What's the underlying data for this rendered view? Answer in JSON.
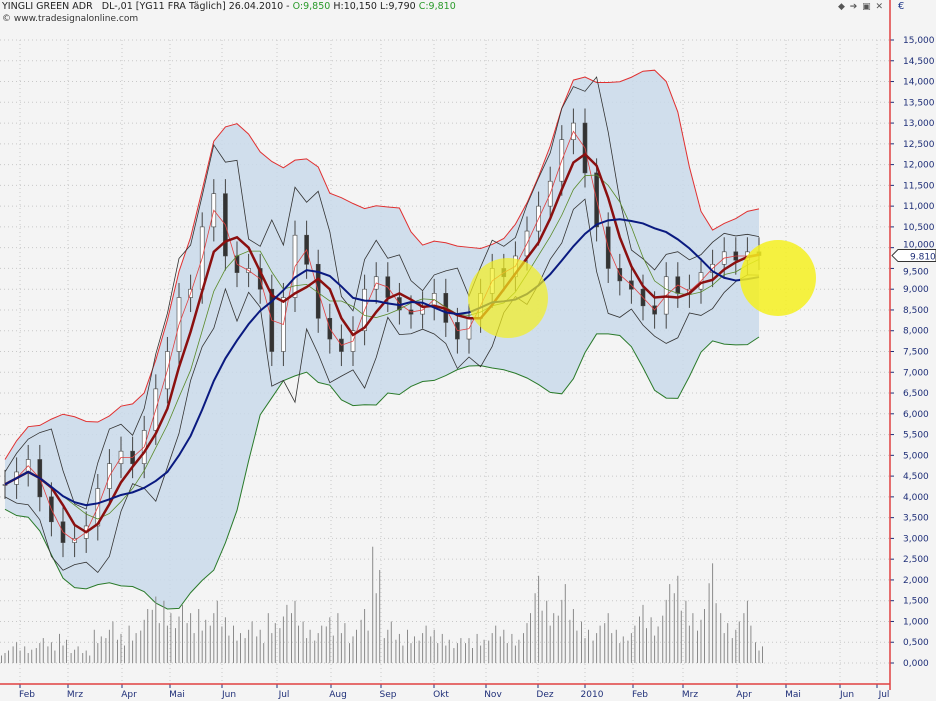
{
  "header": {
    "symbol": "YINGLI GREEN ADR",
    "info": "DL-,01 [YG11 FRA  Täglich] 26.04.2010 -",
    "open": "O:9,850",
    "high": "H:10,150",
    "low": "L:9,790",
    "close": "C:9,810",
    "source": "© www.tradesignalonline.com",
    "currency": "€",
    "controls": "◆ ➔ ▣ ✕"
  },
  "chart_data": {
    "type": "candlestick-with-indicators",
    "title": "YINGLI GREEN ADR",
    "ylim": [
      0,
      15
    ],
    "y_ticks": [
      "0,000",
      "0,500",
      "1,000",
      "1,500",
      "2,000",
      "2,500",
      "3,000",
      "3,500",
      "4,000",
      "4,500",
      "5,000",
      "5,500",
      "6,000",
      "6,500",
      "7,000",
      "7,500",
      "8,000",
      "8,500",
      "9,000",
      "9,500",
      "10,000",
      "10,500",
      "11,000",
      "11,500",
      "12,000",
      "12,500",
      "13,000",
      "13,500",
      "14,000",
      "14,500",
      "15,000"
    ],
    "x_ticks": [
      "Feb",
      "Mrz",
      "Apr",
      "Mai",
      "Jun",
      "Jul",
      "Aug",
      "Sep",
      "Okt",
      "Nov",
      "Dez",
      "2010",
      "Feb",
      "Mrz",
      "Apr",
      "Mai",
      "Jun",
      "Jul"
    ],
    "last_price": "9.810",
    "grid": true,
    "weekly_close": [
      4.3,
      4.6,
      4.9,
      4.0,
      3.4,
      2.9,
      3.0,
      3.3,
      4.2,
      4.8,
      5.1,
      4.8,
      5.6,
      6.6,
      7.5,
      8.8,
      9.0,
      10.5,
      11.3,
      9.8,
      9.4,
      9.5,
      9.0,
      7.5,
      8.8,
      10.3,
      9.6,
      8.3,
      7.8,
      7.5,
      8.0,
      9.0,
      9.3,
      8.8,
      8.5,
      8.4,
      8.6,
      8.9,
      8.2,
      7.8,
      8.3,
      8.9,
      9.5,
      9.3,
      9.8,
      10.4,
      11.0,
      11.6,
      12.6,
      13.0,
      11.8,
      10.5,
      9.5,
      9.2,
      9.0,
      8.6,
      8.4,
      9.3,
      8.9,
      9.0,
      9.4,
      9.6,
      9.9,
      9.7,
      9.9,
      9.81
    ],
    "volume": [
      0.3,
      0.5,
      0.4,
      0.6,
      0.5,
      0.7,
      0.4,
      0.3,
      0.8,
      1.0,
      0.7,
      0.9,
      1.3,
      1.6,
      1.5,
      1.4,
      1.2,
      1.3,
      1.5,
      1.1,
      0.9,
      1.0,
      0.8,
      1.2,
      1.4,
      1.5,
      1.0,
      0.9,
      1.1,
      1.2,
      0.8,
      1.3,
      2.8,
      1.0,
      0.7,
      0.8,
      0.9,
      0.8,
      0.7,
      0.6,
      0.6,
      0.7,
      0.9,
      0.8,
      0.7,
      1.2,
      2.1,
      1.5,
      1.9,
      1.3,
      1.0,
      0.9,
      1.2,
      0.8,
      0.9,
      1.4,
      1.1,
      1.9,
      2.1,
      1.5,
      1.3,
      2.4,
      1.2,
      1.0,
      1.5,
      0.5
    ],
    "highlights": [
      {
        "date": "Nov 2009",
        "price": 9.0
      },
      {
        "date": "Mai 2010",
        "price": 9.5
      }
    ]
  }
}
